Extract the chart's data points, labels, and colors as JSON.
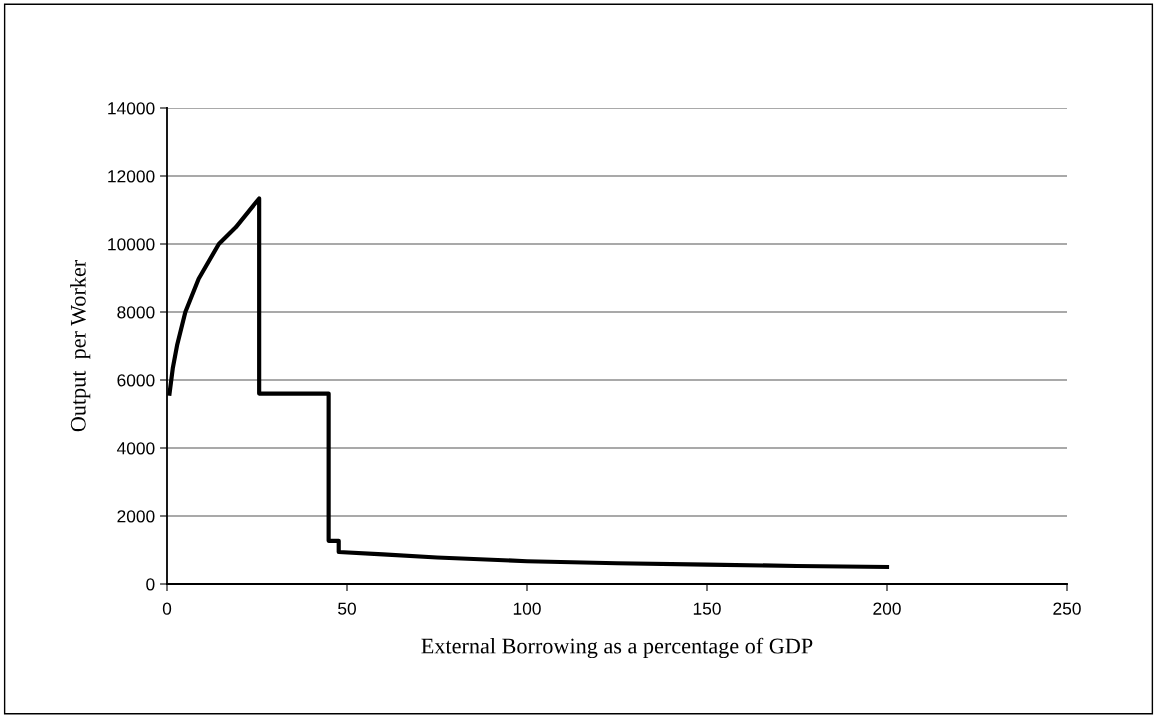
{
  "chart_data": {
    "type": "line",
    "xlabel": "External Borrowing as a percentage of GDP",
    "ylabel": "Output  per Worker",
    "series": [
      {
        "color": "#000000",
        "x": [
          0.7,
          1.6,
          2.8,
          5.1,
          8.8,
          14.4,
          19.1,
          25.6,
          25.6,
          44.9,
          44.9,
          47.7,
          47.7,
          60,
          75,
          100,
          125,
          150,
          175,
          200
        ],
        "values": [
          5600,
          6340,
          7020,
          8000,
          8980,
          10000,
          10490,
          11340,
          5600,
          5600,
          1270,
          1270,
          940,
          870,
          780,
          670,
          610,
          570,
          530,
          500
        ]
      }
    ],
    "xlim": [
      0,
      250
    ],
    "xticks": [
      0,
      50,
      100,
      150,
      200,
      250
    ],
    "ylim": [
      0,
      14000
    ],
    "yticks": [
      0,
      2000,
      4000,
      6000,
      8000,
      10000,
      12000,
      14000
    ],
    "grid": "y",
    "marker": "none",
    "line_style": "solid",
    "legend": false
  }
}
